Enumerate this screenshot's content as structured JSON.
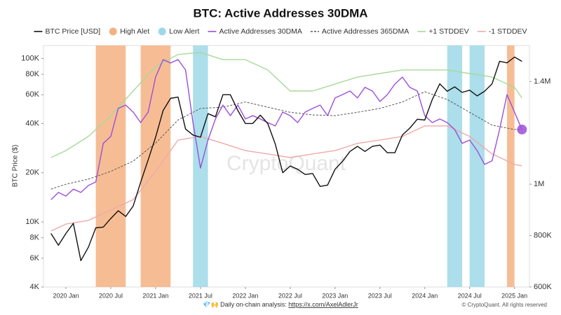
{
  "chart_data": {
    "type": "line",
    "title": "BTC: Active Addresses 30DMA",
    "y_label": "BTC Price ($)",
    "watermark": "CryptoQuant",
    "source_note": "💎🙌 Daily on-chain analysis:",
    "source_link": "https://x.com/AxelAdlerJr",
    "copyright": "© CryptoQuant. All rights reserved",
    "ylog": true,
    "ylim": [
      4000,
      120000
    ],
    "yticks": [
      {
        "value": 4000,
        "label": "4K"
      },
      {
        "value": 6000,
        "label": "6K"
      },
      {
        "value": 8000,
        "label": "8K"
      },
      {
        "value": 10000,
        "label": "10K"
      },
      {
        "value": 20000,
        "label": "20K"
      },
      {
        "value": 40000,
        "label": "40K"
      },
      {
        "value": 60000,
        "label": "60K"
      },
      {
        "value": 80000,
        "label": "80K"
      },
      {
        "value": 100000,
        "label": "100K"
      }
    ],
    "y2lim": [
      600000,
      1540000
    ],
    "y2ticks": [
      {
        "value": 600000,
        "label": "600K"
      },
      {
        "value": 800000,
        "label": "800K"
      },
      {
        "value": 1000000,
        "label": "1M"
      },
      {
        "value": 1400000,
        "label": "1.4M"
      }
    ],
    "xlim": [
      "2019 Oct",
      "2025 Mar"
    ],
    "xticks": [
      "2020 Jan",
      "2020 Jul",
      "2021 Jan",
      "2021 Jul",
      "2022 Jan",
      "2022 Jul",
      "2023 Jan",
      "2023 Jul",
      "2024 Jan",
      "2024 Jul",
      "2025 Jan"
    ],
    "x": [
      "2019 Nov",
      "2019 Dec",
      "2020 Jan",
      "2020 Feb",
      "2020 Mar",
      "2020 Apr",
      "2020 May",
      "2020 Jun",
      "2020 Jul",
      "2020 Aug",
      "2020 Sep",
      "2020 Oct",
      "2020 Nov",
      "2020 Dec",
      "2021 Jan",
      "2021 Feb",
      "2021 Mar",
      "2021 Apr",
      "2021 May",
      "2021 Jun",
      "2021 Jul",
      "2021 Aug",
      "2021 Sep",
      "2021 Oct",
      "2021 Nov",
      "2021 Dec",
      "2022 Jan",
      "2022 Feb",
      "2022 Mar",
      "2022 Apr",
      "2022 May",
      "2022 Jun",
      "2022 Jul",
      "2022 Aug",
      "2022 Sep",
      "2022 Oct",
      "2022 Nov",
      "2022 Dec",
      "2023 Jan",
      "2023 Feb",
      "2023 Mar",
      "2023 Apr",
      "2023 May",
      "2023 Jun",
      "2023 Jul",
      "2023 Aug",
      "2023 Sep",
      "2023 Oct",
      "2023 Nov",
      "2023 Dec",
      "2024 Jan",
      "2024 Feb",
      "2024 Mar",
      "2024 Apr",
      "2024 May",
      "2024 Jun",
      "2024 Jul",
      "2024 Aug",
      "2024 Sep",
      "2024 Oct",
      "2024 Nov",
      "2024 Dec",
      "2025 Jan",
      "2025 Feb"
    ],
    "series": [
      {
        "name": "BTC Price [USD]",
        "color": "#111111",
        "axis": "y",
        "values": [
          8500,
          7200,
          8500,
          9800,
          5800,
          7000,
          9200,
          9300,
          10500,
          11700,
          10800,
          12500,
          17500,
          24000,
          33000,
          48000,
          57000,
          58000,
          37000,
          34000,
          33000,
          46000,
          44000,
          60000,
          60000,
          48000,
          40000,
          40000,
          45000,
          40000,
          30000,
          20000,
          22000,
          21000,
          19500,
          19800,
          16500,
          16800,
          21000,
          23500,
          27000,
          29000,
          27000,
          29000,
          29500,
          26500,
          26500,
          34000,
          37500,
          42500,
          42000,
          56000,
          70000,
          63000,
          67000,
          62000,
          64000,
          59000,
          63000,
          70000,
          96000,
          94000,
          102000,
          96000
        ]
      },
      {
        "name": "High Alet",
        "color": "#f4b183",
        "kind": "band",
        "periods": [
          [
            "2020 May",
            "2020 Sep"
          ],
          [
            "2020 Nov",
            "2021 Mar"
          ],
          [
            "2024 Dec",
            "2025 Jan"
          ]
        ]
      },
      {
        "name": "Low Alert",
        "color": "#9ed8e8",
        "kind": "band",
        "periods": [
          [
            "2021 Jun",
            "2021 Aug"
          ],
          [
            "2024 Apr",
            "2024 Jun"
          ],
          [
            "2024 Jul",
            "2024 Sep"
          ]
        ]
      },
      {
        "name": "Active Addresses 30DMA",
        "color": "#9b4fd8",
        "axis": "y2",
        "end_marker": true,
        "values": [
          940000,
          968000,
          954000,
          981000,
          968000,
          995000,
          1009000,
          1159000,
          1186000,
          1295000,
          1308000,
          1281000,
          1240000,
          1281000,
          1417000,
          1485000,
          1472000,
          1485000,
          1445000,
          1240000,
          1063000,
          1172000,
          1254000,
          1308000,
          1267000,
          1308000,
          1254000,
          1267000,
          1254000,
          1240000,
          1227000,
          1281000,
          1267000,
          1240000,
          1281000,
          1295000,
          1308000,
          1267000,
          1336000,
          1349000,
          1363000,
          1336000,
          1377000,
          1363000,
          1322000,
          1349000,
          1390000,
          1417000,
          1377000,
          1363000,
          1267000,
          1240000,
          1254000,
          1240000,
          1213000,
          1159000,
          1172000,
          1131000,
          1077000,
          1091000,
          1213000,
          1349000,
          1281000,
          1213000
        ]
      },
      {
        "name": "Active Addresses 365DMA",
        "color": "#555555",
        "axis": "y2",
        "dash": true,
        "x": [
          "2019 Nov",
          "2020 Jan",
          "2020 Apr",
          "2020 Jul",
          "2020 Oct",
          "2021 Jan",
          "2021 Apr",
          "2021 Jul",
          "2021 Oct",
          "2022 Jan",
          "2022 Apr",
          "2022 Jul",
          "2022 Oct",
          "2023 Jan",
          "2023 Apr",
          "2023 Jul",
          "2023 Oct",
          "2024 Jan",
          "2024 Apr",
          "2024 Jul",
          "2024 Oct",
          "2025 Jan",
          "2025 Feb"
        ],
        "values": [
          981000,
          1000000,
          1020000,
          1050000,
          1090000,
          1160000,
          1250000,
          1295000,
          1300000,
          1320000,
          1300000,
          1280000,
          1270000,
          1267000,
          1280000,
          1295000,
          1320000,
          1360000,
          1330000,
          1280000,
          1230000,
          1213000,
          1213000
        ]
      },
      {
        "name": "+1 STDDEV",
        "color": "#a8d99a",
        "axis": "y2",
        "x": [
          "2019 Nov",
          "2020 Jan",
          "2020 Apr",
          "2020 Jul",
          "2020 Oct",
          "2021 Jan",
          "2021 Apr",
          "2021 Jul",
          "2021 Oct",
          "2022 Jan",
          "2022 Apr",
          "2022 Jul",
          "2022 Oct",
          "2023 Jan",
          "2023 Apr",
          "2023 Jul",
          "2023 Oct",
          "2024 Jan",
          "2024 Apr",
          "2024 Jul",
          "2024 Oct",
          "2025 Jan",
          "2025 Feb"
        ],
        "values": [
          1104000,
          1131000,
          1186000,
          1267000,
          1363000,
          1458000,
          1505000,
          1513000,
          1485000,
          1485000,
          1445000,
          1363000,
          1363000,
          1390000,
          1417000,
          1431000,
          1445000,
          1445000,
          1445000,
          1431000,
          1417000,
          1377000,
          1336000
        ]
      },
      {
        "name": "-1 STDDEV",
        "color": "#eeaaa8",
        "axis": "y2",
        "x": [
          "2019 Nov",
          "2020 Jan",
          "2020 Apr",
          "2020 Jul",
          "2020 Oct",
          "2021 Jan",
          "2021 Apr",
          "2021 Jul",
          "2021 Oct",
          "2022 Jan",
          "2022 Apr",
          "2022 Jul",
          "2022 Oct",
          "2023 Jan",
          "2023 Apr",
          "2023 Jul",
          "2023 Oct",
          "2024 Jan",
          "2024 Apr",
          "2024 Jul",
          "2024 Oct",
          "2025 Jan",
          "2025 Feb"
        ],
        "values": [
          818000,
          845000,
          859000,
          900000,
          940000,
          1050000,
          1172000,
          1186000,
          1159000,
          1131000,
          1118000,
          1104000,
          1118000,
          1131000,
          1159000,
          1172000,
          1186000,
          1227000,
          1227000,
          1186000,
          1118000,
          1077000,
          1072000
        ]
      }
    ]
  }
}
